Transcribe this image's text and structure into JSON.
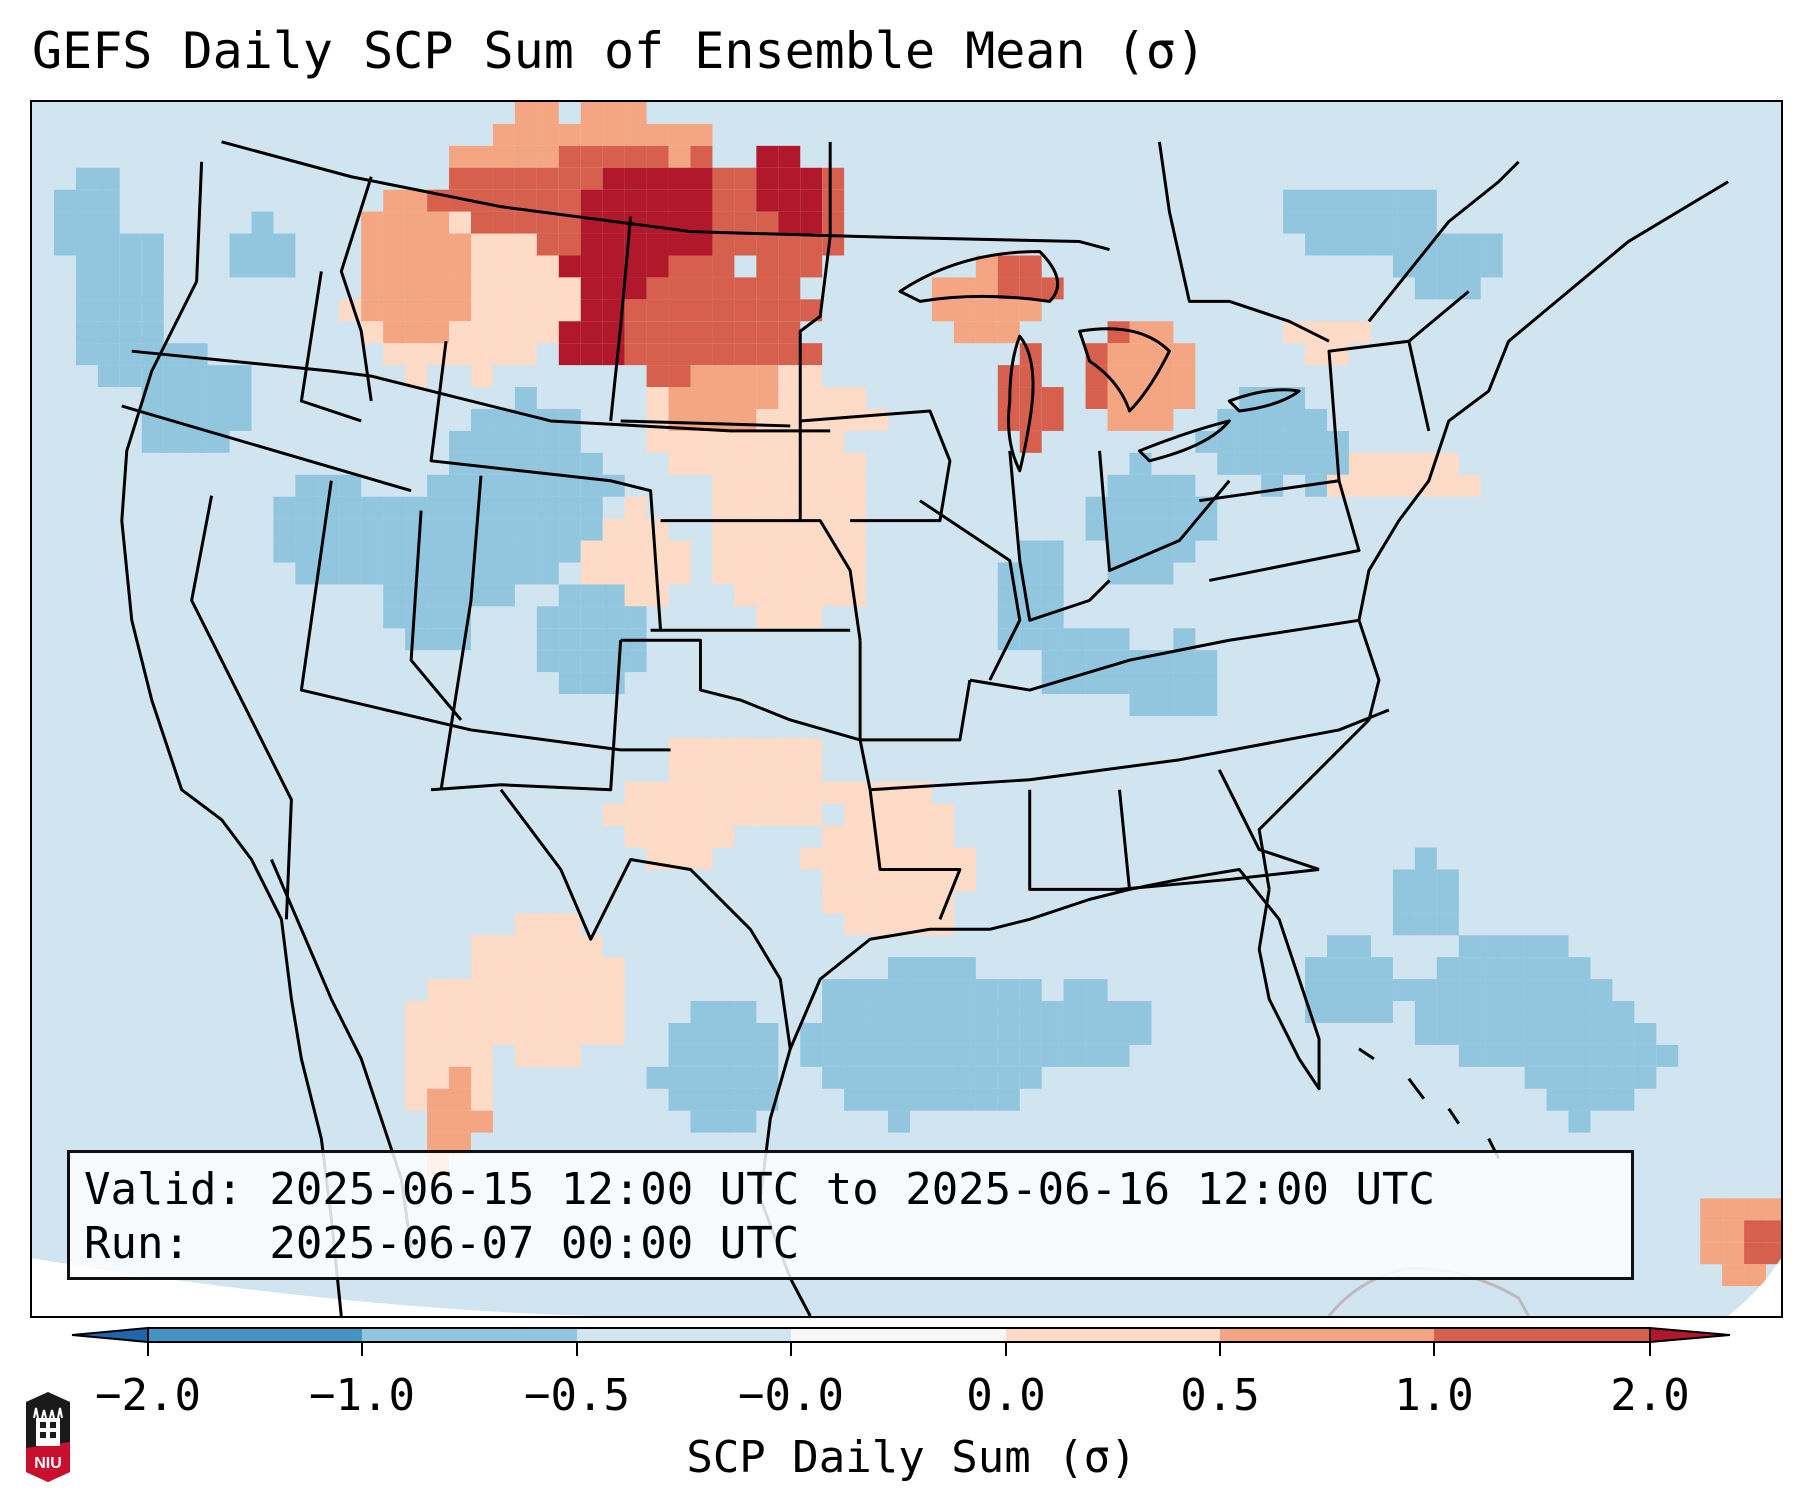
{
  "title": "GEFS Daily SCP Sum of Ensemble Mean (σ)",
  "info_box": {
    "valid_line": "Valid: 2025-06-15 12:00 UTC to 2025-06-16 12:00 UTC",
    "run_line": "Run:   2025-06-07 00:00 UTC"
  },
  "colorbar": {
    "label": "SCP Daily Sum (σ)",
    "ticks": [
      "−2.0",
      "−1.0",
      "−0.5",
      "−0.0",
      "0.0",
      "0.5",
      "1.0",
      "2.0"
    ],
    "bins": [
      {
        "range": "< −2.0",
        "color": "#2166ac"
      },
      {
        "range": "−2.0 to −1.0",
        "color": "#4393c3"
      },
      {
        "range": "−1.0 to −0.5",
        "color": "#92c5de"
      },
      {
        "range": "−0.5 to −0.0",
        "color": "#d1e5f0"
      },
      {
        "range": "−0.0 to 0.0",
        "color": "#f7f7f7"
      },
      {
        "range": "0.0 to 0.5",
        "color": "#fddbc7"
      },
      {
        "range": "0.5 to 1.0",
        "color": "#f4a582"
      },
      {
        "range": "1.0 to 2.0",
        "color": "#d6604d"
      },
      {
        "range": "> 2.0",
        "color": "#b2182b"
      }
    ],
    "extend": "both"
  },
  "logo": {
    "text": "NIU"
  },
  "chart_data": {
    "type": "heatmap",
    "title": "GEFS Daily SCP Sum of Ensemble Mean (σ)",
    "colorbar_label": "SCP Daily Sum (σ)",
    "levels": [
      -2.0,
      -1.0,
      -0.5,
      -0.0,
      0.0,
      0.5,
      1.0,
      2.0
    ],
    "region": "Contiguous United States, southern Canada, northern Mexico, Gulf of Mexico, western Atlantic",
    "anomaly_regions": [
      {
        "area": "Eastern Montana / southern Saskatchewan",
        "category": "> 2.0"
      },
      {
        "area": "Southern Alberta / western Montana",
        "category": "1.0 to 2.0"
      },
      {
        "area": "North Dakota / southern Manitoba",
        "category": "1.0 to 2.0"
      },
      {
        "area": "South Dakota / Nebraska",
        "category": "0.0 to 0.5"
      },
      {
        "area": "Lake Superior / Lake Michigan / Lake Huron",
        "category": "1.0 to 2.0"
      },
      {
        "area": "Idaho / Wyoming",
        "category": "−1.0 to −0.5"
      },
      {
        "area": "Utah / Colorado / Nevada",
        "category": "−1.0 to −0.5"
      },
      {
        "area": "Ohio Valley / Pennsylvania",
        "category": "−1.0 to −0.5"
      },
      {
        "area": "Northwestern Gulf of Mexico",
        "category": "−1.0 to −0.5"
      },
      {
        "area": "Texas / Oklahoma / New Mexico",
        "category": "0.0 to 0.5"
      },
      {
        "area": "Northern Mexico (Sierra Madre)",
        "category": "0.0 to 0.5"
      },
      {
        "area": "Hispaniola area",
        "category": "1.0 to 2.0"
      },
      {
        "area": "Background (most of domain)",
        "category": "−0.5 to −0.0"
      }
    ]
  }
}
